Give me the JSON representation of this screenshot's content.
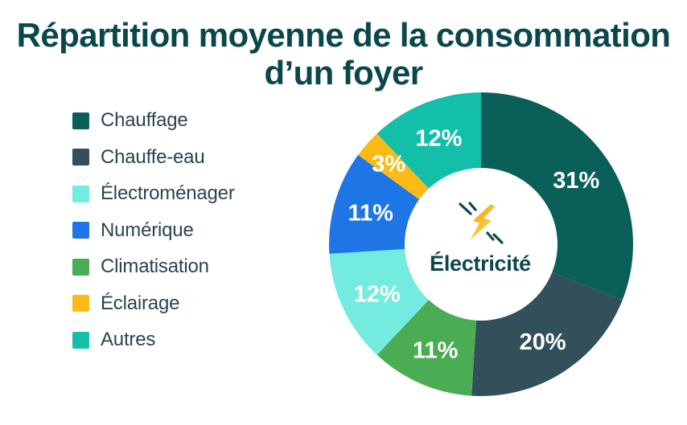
{
  "title": {
    "line1": "Répartition moyenne de la consommation",
    "line2": "d’un foyer"
  },
  "center": {
    "label": "Électricité",
    "icon": "lightning-bolt"
  },
  "colors": {
    "background": "#ffffff",
    "title_text": "#0A474D",
    "legend_text": "#2A4450",
    "center_text": "#0A474D",
    "percent_text": "#ffffff",
    "spark_stroke": "#0A474D",
    "bolt_gradient_start": "#F2A30A",
    "bolt_gradient_end": "#FFD95A"
  },
  "chart_data": {
    "type": "pie",
    "donut": true,
    "title": "Répartition moyenne de la consommation d’un foyer",
    "center_label": "Électricité",
    "start_angle_deg": 0,
    "direction": "clockwise",
    "segments": [
      {
        "label": "Chauffage",
        "value": 31,
        "display": "31%",
        "color": "#0B5F59"
      },
      {
        "label": "Chauffe-eau",
        "value": 20,
        "display": "20%",
        "color": "#334F5B"
      },
      {
        "label": "Climatisation",
        "value": 11,
        "display": "11%",
        "color": "#4AAC53"
      },
      {
        "label": "Électroménager",
        "value": 12,
        "display": "12%",
        "color": "#73EBDE"
      },
      {
        "label": "Numérique",
        "value": 11,
        "display": "11%",
        "color": "#1E76E6"
      },
      {
        "label": "Éclairage",
        "value": 3,
        "display": "3%",
        "color": "#F9BB16"
      },
      {
        "label": "Autres",
        "value": 12,
        "display": "12%",
        "color": "#14BFAA"
      }
    ],
    "legend_order": [
      "Chauffage",
      "Chauffe-eau",
      "Électroménager",
      "Numérique",
      "Climatisation",
      "Éclairage",
      "Autres"
    ],
    "legend_position": "left"
  }
}
